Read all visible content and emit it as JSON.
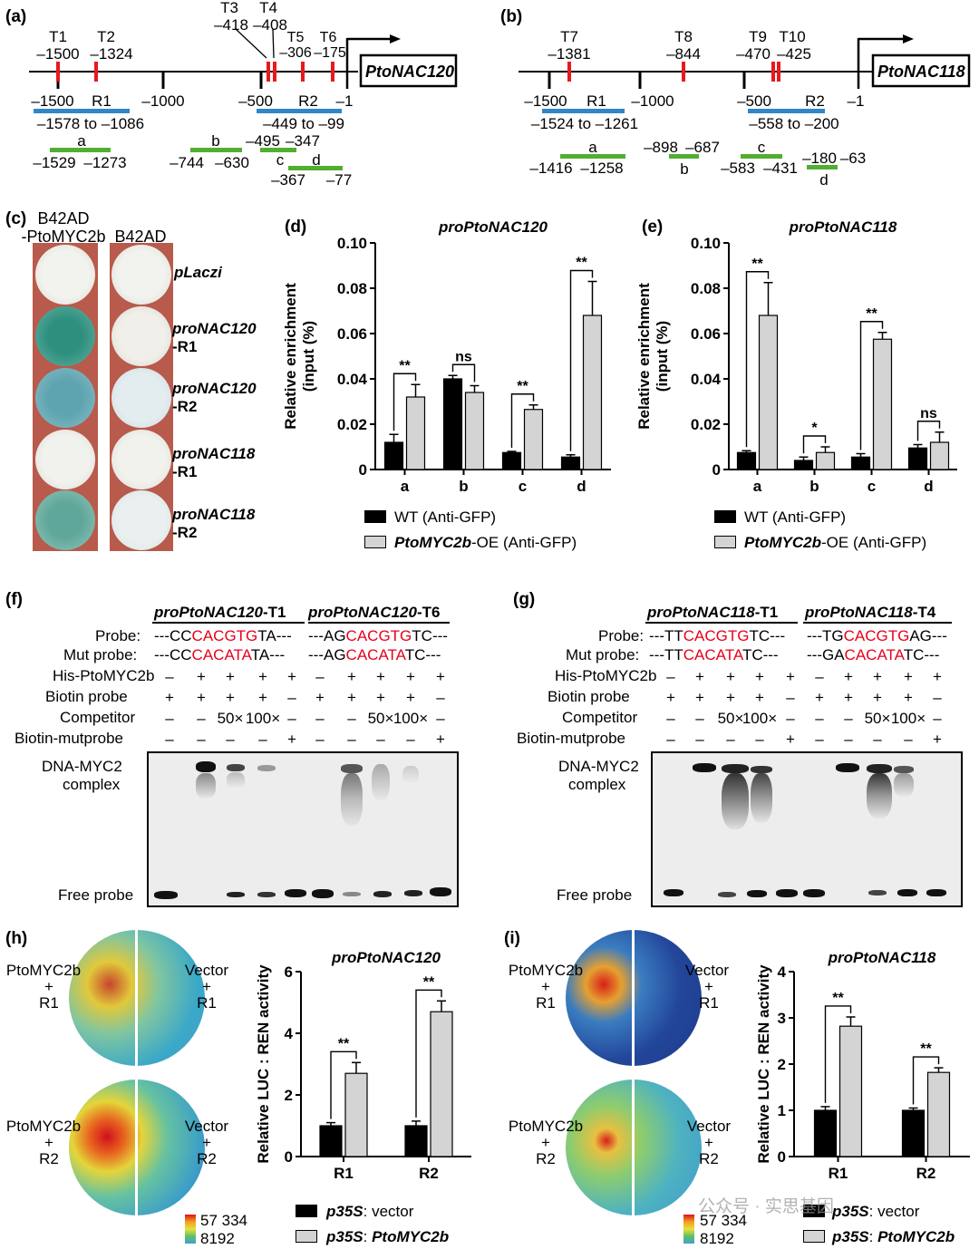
{
  "panels": {
    "a": {
      "label": "(a)",
      "gene": "PtoNAC120",
      "sites": [
        {
          "name": "T1",
          "pos": "–1500"
        },
        {
          "name": "T2",
          "pos": "–1324"
        },
        {
          "name": "T3",
          "pos": "–418"
        },
        {
          "name": "T4",
          "pos": "–408"
        },
        {
          "name": "T5",
          "pos": "–306"
        },
        {
          "name": "T6",
          "pos": "–175"
        }
      ],
      "ticks": [
        "–1500",
        "–1000",
        "–500",
        "–1"
      ],
      "regions": [
        {
          "name": "R1",
          "range": "–1578 to –1086"
        },
        {
          "name": "R2",
          "range": "–449 to –99"
        }
      ],
      "amplicons": [
        {
          "name": "a",
          "start": "–1529",
          "end": "–1273"
        },
        {
          "name": "b",
          "start": "–744",
          "end": "–630"
        },
        {
          "name": "c",
          "start": "–495",
          "end": "–347"
        },
        {
          "name": "d",
          "start": "–367",
          "end": "–77"
        }
      ]
    },
    "b": {
      "label": "(b)",
      "gene": "PtoNAC118",
      "sites": [
        {
          "name": "T7",
          "pos": "–1381"
        },
        {
          "name": "T8",
          "pos": "–844"
        },
        {
          "name": "T9",
          "pos": "–470"
        },
        {
          "name": "T10",
          "pos": "–425"
        }
      ],
      "ticks": [
        "–1500",
        "–1000",
        "–500",
        "–1"
      ],
      "regions": [
        {
          "name": "R1",
          "range": "–1524 to –1261"
        },
        {
          "name": "R2",
          "range": "–558 to –200"
        }
      ],
      "amplicons": [
        {
          "name": "a",
          "start": "–1416",
          "end": "–1258"
        },
        {
          "name": "b",
          "start": "–898",
          "end": "–687"
        },
        {
          "name": "c",
          "start": "–583",
          "end": "–431"
        },
        {
          "name": "d",
          "start": "–180",
          "end": "–63"
        }
      ]
    },
    "c": {
      "label": "(c)",
      "col1": "B42AD",
      "col1b": "-PtoMYC2b",
      "col2": "B42AD",
      "rows": [
        {
          "name": "pLaczi",
          "sub": ""
        },
        {
          "name": "proNAC120",
          "sub": "-R1"
        },
        {
          "name": "proNAC120",
          "sub": "-R2"
        },
        {
          "name": "proNAC118",
          "sub": "-R1"
        },
        {
          "name": "proNAC118",
          "sub": "-R2"
        }
      ]
    },
    "f": {
      "label": "(f)",
      "probe_sets": [
        {
          "title": "proPtoNAC120",
          "suffix": "-T1",
          "probe": [
            "---CC",
            "CACGTG",
            "TA---"
          ],
          "mut": [
            "---CC",
            "CACATA",
            "TA---"
          ]
        },
        {
          "title": "proPtoNAC120",
          "suffix": "-T6",
          "probe": [
            "---AG",
            "CACGTG",
            "TC---"
          ],
          "mut": [
            "---AG",
            "CACATA",
            "TC---"
          ]
        }
      ]
    },
    "g": {
      "label": "(g)",
      "probe_sets": [
        {
          "title": "proPtoNAC118",
          "suffix": "-T1",
          "probe": [
            "---TT",
            "CACGTG",
            "TC---"
          ],
          "mut": [
            "---TT",
            "CACATA",
            "TC---"
          ]
        },
        {
          "title": "proPtoNAC118",
          "suffix": "-T4",
          "probe": [
            "---TG",
            "CACGTG",
            "AG---"
          ],
          "mut": [
            "---GA",
            "CACATA",
            "TC---"
          ]
        }
      ]
    },
    "h": {
      "label": "(h)",
      "effector": "PtoMYC2b",
      "control": "Vector",
      "plus": "+",
      "r1": "R1",
      "r2": "R2",
      "scale_max": "57 334",
      "scale_min": "8192"
    },
    "i": {
      "label": "(i)",
      "effector": "PtoMYC2b",
      "control": "Vector",
      "plus": "+",
      "r1": "R1",
      "r2": "R2",
      "scale_max": "57 334",
      "scale_min": "8192"
    }
  },
  "emsa": {
    "probe_label": "Probe:",
    "mut_label": "Mut probe:",
    "rows": [
      "His-PtoMYC2b",
      "Biotin probe",
      "Competitor",
      "Biotin-mutprobe"
    ],
    "symbols": {
      "his": [
        "–",
        "+",
        "+",
        "+",
        "+"
      ],
      "biotin": [
        "+",
        "+",
        "+",
        "+",
        "–"
      ],
      "competitor": [
        "–",
        "–",
        "50×",
        "100×",
        "–"
      ],
      "mut": [
        "–",
        "–",
        "–",
        "–",
        "+"
      ]
    },
    "complex_label": [
      "DNA-MYC2",
      "complex"
    ],
    "free_label": "Free probe"
  },
  "chart_data": [
    {
      "panel": "(d)",
      "type": "bar",
      "title": "proPtoNAC120",
      "ylabel": "Relative enrichment (input (%)",
      "ylabel_lines": [
        "Relative enrichment",
        "(input (%)"
      ],
      "ylim": [
        0,
        0.1
      ],
      "yticks": [
        "0",
        "0.02",
        "0.04",
        "0.06",
        "0.08",
        "0.10"
      ],
      "categories": [
        "a",
        "b",
        "c",
        "d"
      ],
      "series": [
        {
          "name": "WT (Anti-GFP)",
          "values": [
            0.012,
            0.04,
            0.0075,
            0.0055
          ],
          "errors": [
            0.0035,
            0.0015,
            0.0005,
            0.001
          ]
        },
        {
          "name": "PtoMYC2b-OE (Anti-GFP)",
          "values": [
            0.032,
            0.034,
            0.0265,
            0.068
          ],
          "errors": [
            0.0055,
            0.003,
            0.002,
            0.015
          ]
        }
      ],
      "significance": [
        "**",
        "ns",
        "**",
        "**"
      ]
    },
    {
      "panel": "(e)",
      "type": "bar",
      "title": "proPtoNAC118",
      "ylabel": "Relative enrichment (input (%)",
      "ylabel_lines": [
        "Relative enrichment",
        "(input (%)"
      ],
      "ylim": [
        0,
        0.1
      ],
      "yticks": [
        "0",
        "0.02",
        "0.04",
        "0.06",
        "0.08",
        "0.10"
      ],
      "categories": [
        "a",
        "b",
        "c",
        "d"
      ],
      "series": [
        {
          "name": "WT (Anti-GFP)",
          "values": [
            0.0075,
            0.004,
            0.0055,
            0.0095
          ],
          "errors": [
            0.0008,
            0.0015,
            0.0015,
            0.0015
          ]
        },
        {
          "name": "PtoMYC2b-OE (Anti-GFP)",
          "values": [
            0.068,
            0.0075,
            0.0575,
            0.012
          ],
          "errors": [
            0.0145,
            0.0025,
            0.003,
            0.0045
          ]
        }
      ],
      "significance": [
        "**",
        "*",
        "**",
        "ns"
      ]
    },
    {
      "panel": "(h)",
      "type": "bar",
      "title": "proPtoNAC120",
      "ylabel": "Relative LUC : REN activity",
      "ylim": [
        0,
        6
      ],
      "yticks": [
        "0",
        "2",
        "4",
        "6"
      ],
      "categories": [
        "R1",
        "R2"
      ],
      "series": [
        {
          "name": "p35S: vector",
          "values": [
            1.0,
            1.0
          ],
          "errors": [
            0.1,
            0.15
          ]
        },
        {
          "name": "p35S: PtoMYC2b",
          "values": [
            2.7,
            4.7
          ],
          "errors": [
            0.35,
            0.35
          ]
        }
      ],
      "significance": [
        "**",
        "**"
      ]
    },
    {
      "panel": "(i)",
      "type": "bar",
      "title": "proPtoNAC118",
      "ylabel": "Relative LUC : REN activity",
      "ylim": [
        0,
        4
      ],
      "yticks": [
        "0",
        "1",
        "2",
        "3",
        "4"
      ],
      "categories": [
        "R1",
        "R2"
      ],
      "series": [
        {
          "name": "p35S: vector",
          "values": [
            1.0,
            1.0
          ],
          "errors": [
            0.08,
            0.05
          ]
        },
        {
          "name": "p35S: PtoMYC2b",
          "values": [
            2.82,
            1.82
          ],
          "errors": [
            0.2,
            0.1
          ]
        }
      ],
      "significance": [
        "**",
        "**"
      ]
    }
  ],
  "legend": {
    "wt": "WT (Anti-GFP)",
    "oe_gene": "PtoMYC2b",
    "oe_rest": "-OE (Anti-GFP)",
    "luc_vec_ital": "p35S",
    "luc_vec_rest": ": vector",
    "luc_eff_ital": "p35S",
    "luc_eff_rest": ": ",
    "luc_eff_gene": "PtoMYC2b"
  },
  "watermark": "公众号 · 实思基因",
  "colors": {
    "red_site": "#e8191e",
    "blue_region": "#2f87c8",
    "green_amplicon": "#52ae32",
    "bar_black": "#000000",
    "bar_gray": "#d4d4d4",
    "motif_red": "#e8001c"
  }
}
